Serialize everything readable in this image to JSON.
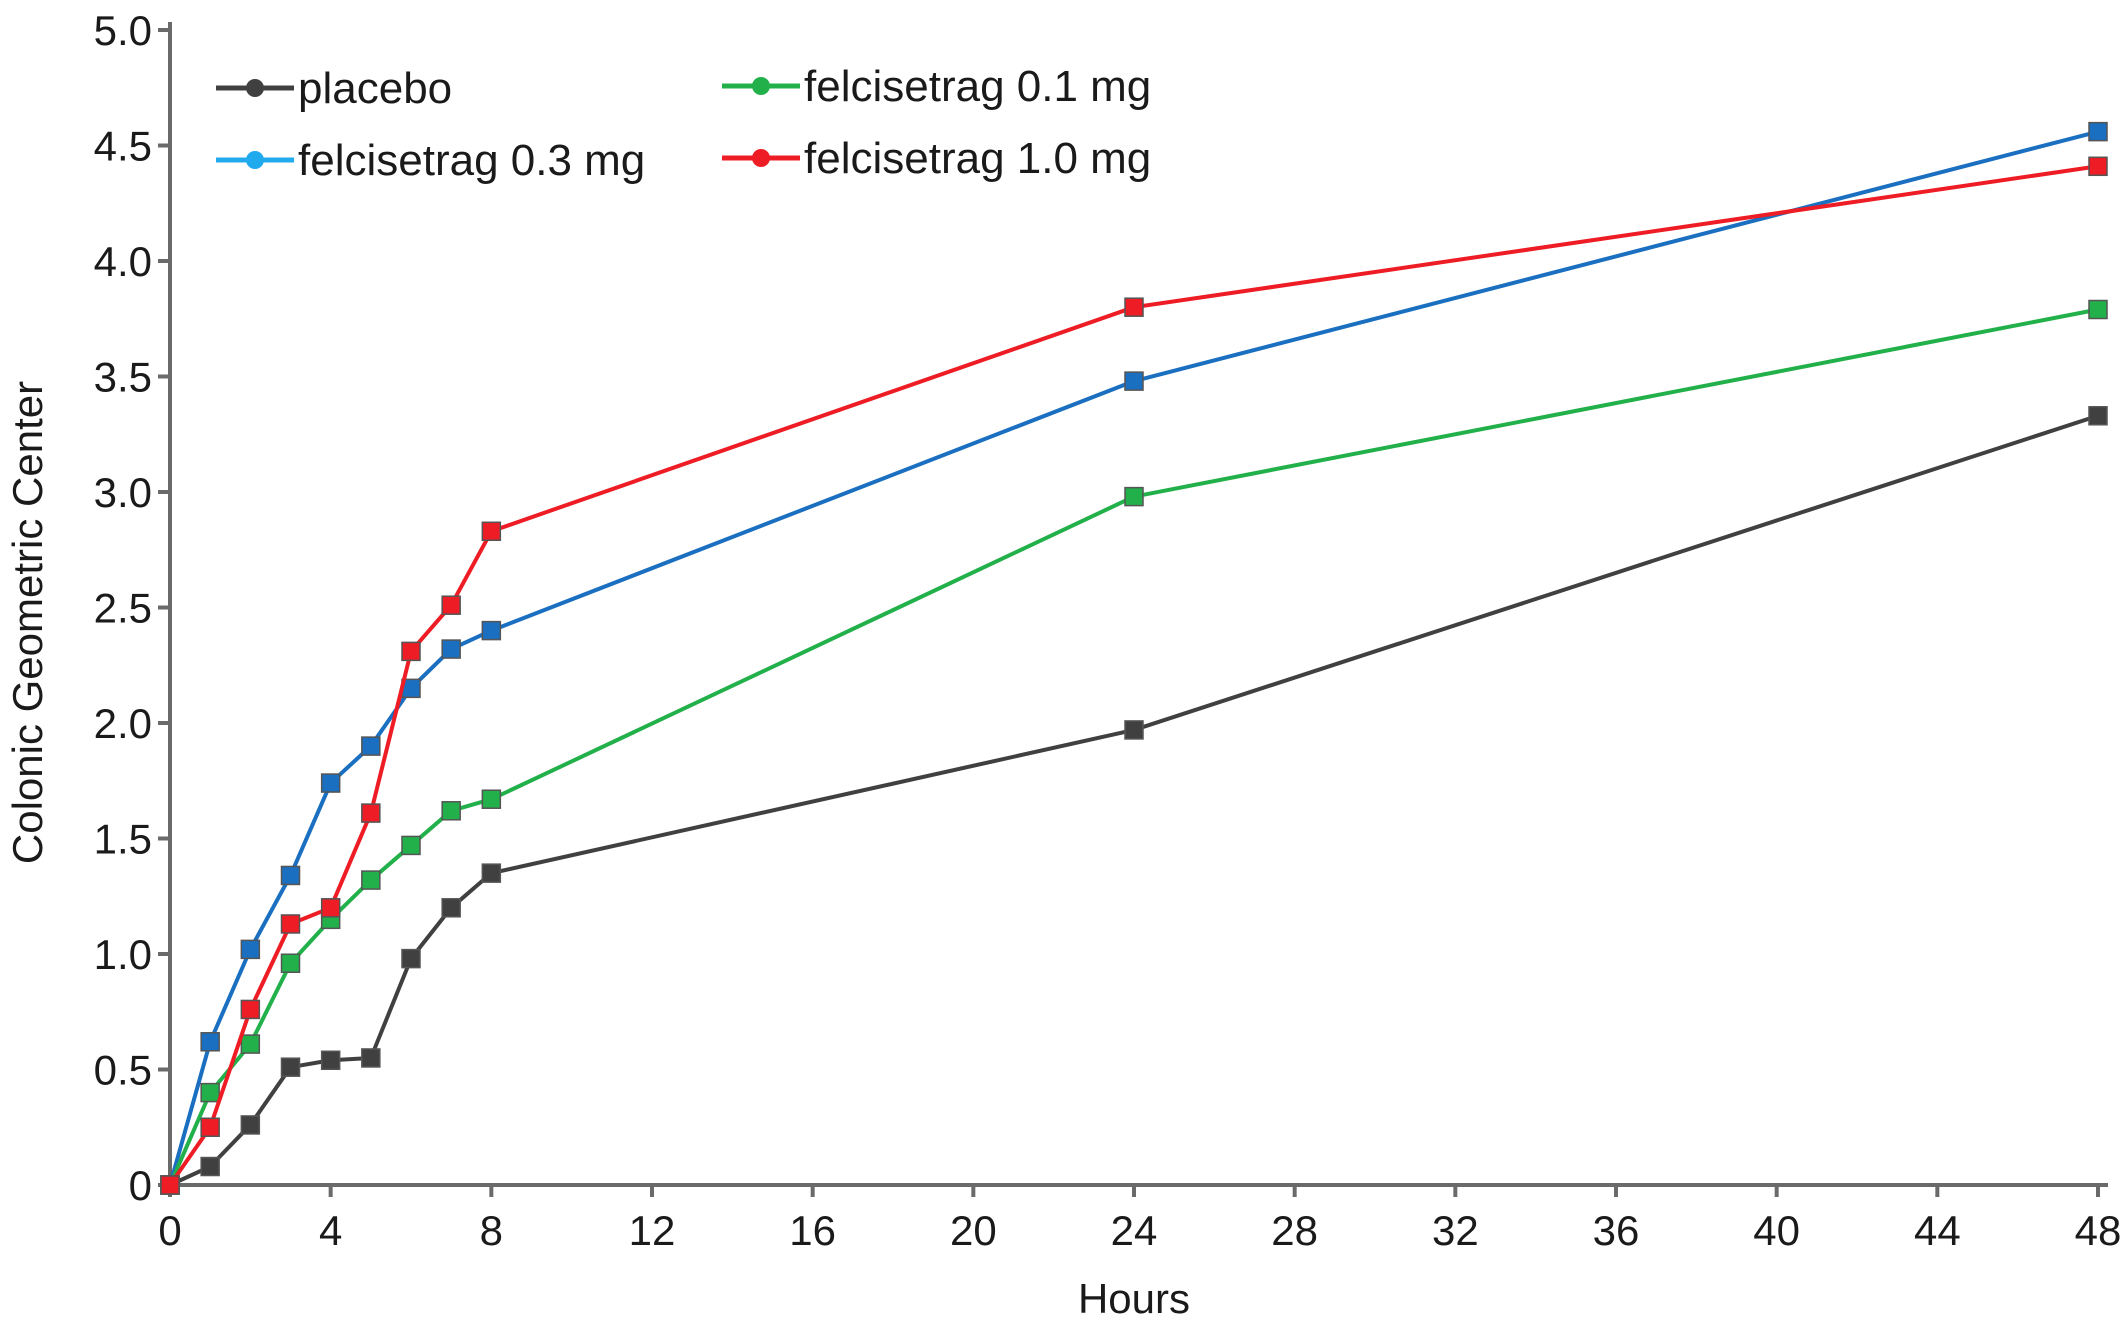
{
  "chart_data": {
    "type": "line",
    "title": "",
    "xlabel": "Hours",
    "ylabel": "Colonic Geometric Center",
    "xlim": [
      0,
      48
    ],
    "ylim": [
      0,
      5.0
    ],
    "x_ticks": [
      "0",
      "4",
      "8",
      "12",
      "16",
      "20",
      "24",
      "28",
      "32",
      "36",
      "40",
      "44",
      "48"
    ],
    "y_ticks": [
      "0",
      "0.5",
      "1.0",
      "1.5",
      "2.0",
      "2.5",
      "3.0",
      "3.5",
      "4.0",
      "4.5",
      "5.0"
    ],
    "grid": false,
    "legend_position": "top-left",
    "series": [
      {
        "name": "placebo",
        "color": "#404040",
        "marker_color": "#404040",
        "x": [
          0,
          1,
          2,
          3,
          4,
          5,
          6,
          7,
          8,
          24,
          48
        ],
        "y": [
          0,
          0.08,
          0.26,
          0.51,
          0.54,
          0.55,
          0.98,
          1.2,
          1.35,
          1.97,
          3.33
        ]
      },
      {
        "name": "felcisetrag 0.3 mg",
        "color": "#1a6fc0",
        "marker_color": "#1a6fc0",
        "legend_color": "#22aaee",
        "x": [
          0,
          1,
          2,
          3,
          4,
          5,
          6,
          7,
          8,
          24,
          48
        ],
        "y": [
          0,
          0.62,
          1.02,
          1.34,
          1.74,
          1.9,
          2.15,
          2.32,
          2.4,
          3.48,
          4.56
        ]
      },
      {
        "name": "felcisetrag 0.1 mg",
        "color": "#22b04a",
        "marker_color": "#22b04a",
        "x": [
          0,
          1,
          2,
          3,
          4,
          5,
          6,
          7,
          8,
          24,
          48
        ],
        "y": [
          0,
          0.4,
          0.61,
          0.96,
          1.15,
          1.32,
          1.47,
          1.62,
          1.67,
          2.98,
          3.79
        ]
      },
      {
        "name": "felcisetrag 1.0 mg",
        "color": "#ee1c24",
        "marker_color": "#ee1c24",
        "x": [
          0,
          1,
          2,
          3,
          4,
          5,
          6,
          7,
          8,
          24,
          48
        ],
        "y": [
          0,
          0.25,
          0.76,
          1.13,
          1.2,
          1.61,
          2.31,
          2.51,
          2.83,
          3.8,
          4.41
        ]
      }
    ]
  }
}
